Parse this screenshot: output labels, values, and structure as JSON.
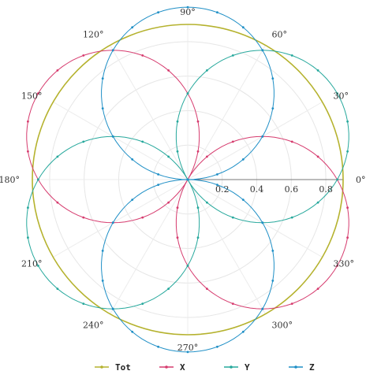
{
  "chart_data": {
    "type": "polar-line",
    "title": "",
    "angle_unit": "degrees",
    "angle_ticks": [
      0,
      30,
      60,
      90,
      120,
      150,
      180,
      210,
      240,
      270,
      300,
      330
    ],
    "angle_tick_labels": [
      "0°",
      "30°",
      "60°",
      "90°",
      "120°",
      "150°",
      "180°",
      "210°",
      "240°",
      "270°",
      "300°",
      "330°"
    ],
    "radial_ticks": [
      0.2,
      0.4,
      0.6,
      0.8
    ],
    "radial_tick_labels": [
      "0.2",
      "0.4",
      "0.6",
      "0.8"
    ],
    "rlim": [
      0,
      0.9
    ],
    "grid": true,
    "legend_position": "bottom",
    "series": [
      {
        "name": "Tot",
        "color": "#b5b22e",
        "formula": "r = 1",
        "r": 1,
        "lobe_directions_deg": []
      },
      {
        "name": "X",
        "color": "#d63b6e",
        "formula": "r = |cos(phi - 150°)|",
        "r_max": 1,
        "lobe_directions_deg": [
          150,
          330
        ]
      },
      {
        "name": "Y",
        "color": "#26a89c",
        "formula": "r = |cos(phi - 30°)|",
        "r_max": 1,
        "lobe_directions_deg": [
          30,
          210
        ]
      },
      {
        "name": "Z",
        "color": "#1f8fc6",
        "formula": "r = |cos(phi - 90°)|",
        "r_max": 1,
        "lobe_directions_deg": [
          90,
          270
        ]
      }
    ]
  }
}
